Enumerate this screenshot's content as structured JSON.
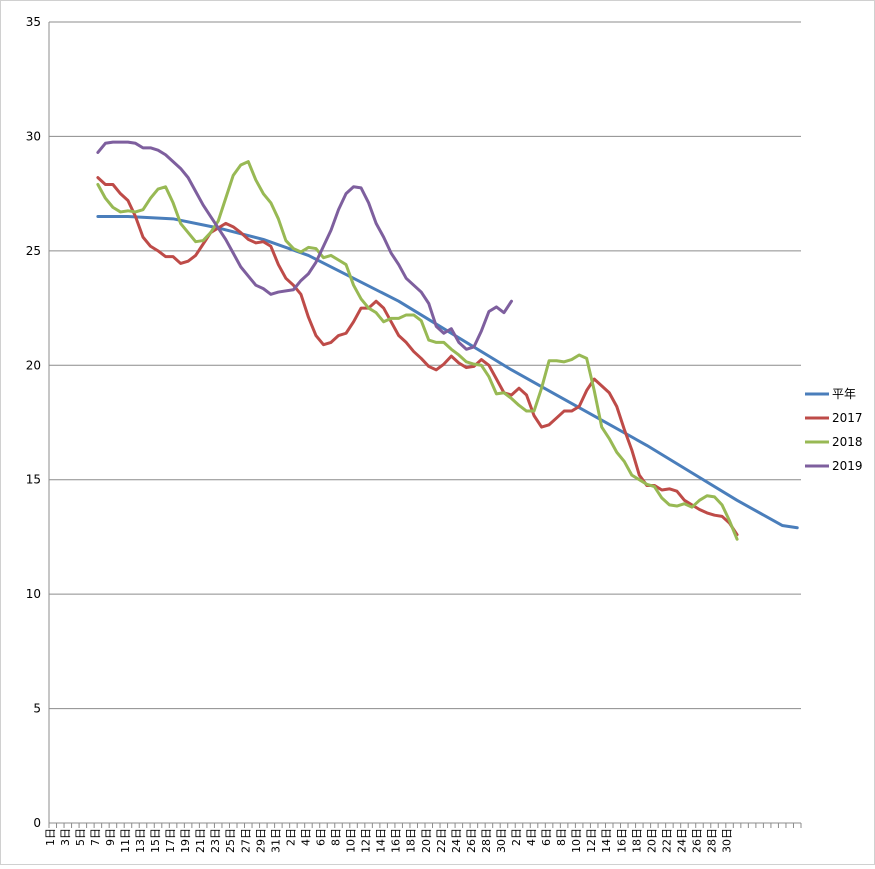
{
  "chart_data": {
    "type": "line",
    "title": "",
    "xlabel": "",
    "ylabel": "",
    "ylim": [
      0,
      35
    ],
    "yticks": [
      0,
      5,
      10,
      15,
      20,
      25,
      30,
      35
    ],
    "grid": "horizontal",
    "legend_position": "right",
    "x_tick_labels": [
      "1日",
      "3日",
      "5日",
      "7日",
      "9日",
      "11日",
      "13日",
      "15日",
      "17日",
      "19日",
      "21日",
      "23日",
      "25日",
      "27日",
      "29日",
      "31日",
      "2日",
      "4日",
      "6日",
      "8日",
      "10日",
      "12日",
      "14日",
      "16日",
      "18日",
      "20日",
      "22日",
      "24日",
      "26日",
      "28日",
      "30日",
      "2日",
      "4日",
      "6日",
      "8日",
      "10日",
      "12日",
      "14日",
      "16日",
      "18日",
      "20日",
      "22日",
      "24日",
      "26日",
      "28日",
      "30日"
    ],
    "series": [
      {
        "name": "平年",
        "color": "#4a7ebb",
        "points": [
          [
            7,
            26.5
          ],
          [
            11,
            26.5
          ],
          [
            17,
            26.4
          ],
          [
            23,
            26.0
          ],
          [
            29,
            25.5
          ],
          [
            35,
            24.8
          ],
          [
            41,
            23.8
          ],
          [
            47,
            22.8
          ],
          [
            53,
            21.6
          ],
          [
            59,
            20.4
          ],
          [
            62,
            19.8
          ],
          [
            68,
            18.7
          ],
          [
            74,
            17.6
          ],
          [
            80,
            16.5
          ],
          [
            86,
            15.3
          ],
          [
            92,
            14.1
          ],
          [
            98,
            13.0
          ],
          [
            100,
            12.9
          ]
        ]
      },
      {
        "name": "2017",
        "color": "#be4b48",
        "points": [
          [
            7,
            28.2
          ],
          [
            8,
            27.9
          ],
          [
            9,
            27.9
          ],
          [
            10,
            27.5
          ],
          [
            11,
            27.2
          ],
          [
            12,
            26.5
          ],
          [
            13,
            25.6
          ],
          [
            14,
            25.2
          ],
          [
            15,
            25.0
          ],
          [
            16,
            24.75
          ],
          [
            17,
            24.75
          ],
          [
            18,
            24.45
          ],
          [
            19,
            24.55
          ],
          [
            20,
            24.8
          ],
          [
            21,
            25.3
          ],
          [
            22,
            25.8
          ],
          [
            23,
            26.0
          ],
          [
            24,
            26.2
          ],
          [
            25,
            26.05
          ],
          [
            26,
            25.8
          ],
          [
            27,
            25.5
          ],
          [
            28,
            25.35
          ],
          [
            29,
            25.4
          ],
          [
            30,
            25.2
          ],
          [
            31,
            24.4
          ],
          [
            32,
            23.8
          ],
          [
            33,
            23.5
          ],
          [
            34,
            23.1
          ],
          [
            35,
            22.1
          ],
          [
            36,
            21.3
          ],
          [
            37,
            20.9
          ],
          [
            38,
            21.0
          ],
          [
            39,
            21.3
          ],
          [
            40,
            21.4
          ],
          [
            41,
            21.9
          ],
          [
            42,
            22.5
          ],
          [
            43,
            22.5
          ],
          [
            44,
            22.8
          ],
          [
            45,
            22.5
          ],
          [
            46,
            21.9
          ],
          [
            47,
            21.3
          ],
          [
            48,
            21.0
          ],
          [
            49,
            20.6
          ],
          [
            50,
            20.3
          ],
          [
            51,
            19.95
          ],
          [
            52,
            19.8
          ],
          [
            53,
            20.05
          ],
          [
            54,
            20.4
          ],
          [
            55,
            20.1
          ],
          [
            56,
            19.9
          ],
          [
            57,
            19.95
          ],
          [
            58,
            20.25
          ],
          [
            59,
            20.0
          ],
          [
            60,
            19.4
          ],
          [
            61,
            18.8
          ],
          [
            62,
            18.7
          ],
          [
            63,
            19.0
          ],
          [
            64,
            18.7
          ],
          [
            65,
            17.8
          ],
          [
            66,
            17.3
          ],
          [
            67,
            17.4
          ],
          [
            68,
            17.7
          ],
          [
            69,
            18.0
          ],
          [
            70,
            18.0
          ],
          [
            71,
            18.2
          ],
          [
            72,
            18.9
          ],
          [
            73,
            19.4
          ],
          [
            74,
            19.1
          ],
          [
            75,
            18.8
          ],
          [
            76,
            18.2
          ],
          [
            77,
            17.2
          ],
          [
            78,
            16.3
          ],
          [
            79,
            15.2
          ],
          [
            80,
            14.75
          ],
          [
            81,
            14.75
          ],
          [
            82,
            14.55
          ],
          [
            83,
            14.6
          ],
          [
            84,
            14.5
          ],
          [
            85,
            14.1
          ],
          [
            86,
            13.9
          ],
          [
            87,
            13.7
          ],
          [
            88,
            13.55
          ],
          [
            89,
            13.45
          ],
          [
            90,
            13.4
          ],
          [
            91,
            13.1
          ],
          [
            92,
            12.6
          ]
        ]
      },
      {
        "name": "2018",
        "color": "#98b954",
        "points": [
          [
            7,
            27.9
          ],
          [
            8,
            27.3
          ],
          [
            9,
            26.9
          ],
          [
            10,
            26.7
          ],
          [
            11,
            26.75
          ],
          [
            12,
            26.7
          ],
          [
            13,
            26.8
          ],
          [
            14,
            27.3
          ],
          [
            15,
            27.7
          ],
          [
            16,
            27.8
          ],
          [
            17,
            27.1
          ],
          [
            18,
            26.2
          ],
          [
            19,
            25.8
          ],
          [
            20,
            25.4
          ],
          [
            21,
            25.45
          ],
          [
            22,
            25.8
          ],
          [
            23,
            26.3
          ],
          [
            24,
            27.3
          ],
          [
            25,
            28.3
          ],
          [
            26,
            28.75
          ],
          [
            27,
            28.9
          ],
          [
            28,
            28.1
          ],
          [
            29,
            27.5
          ],
          [
            30,
            27.1
          ],
          [
            31,
            26.4
          ],
          [
            32,
            25.45
          ],
          [
            33,
            25.1
          ],
          [
            34,
            24.95
          ],
          [
            35,
            25.15
          ],
          [
            36,
            25.1
          ],
          [
            37,
            24.7
          ],
          [
            38,
            24.8
          ],
          [
            39,
            24.6
          ],
          [
            40,
            24.4
          ],
          [
            41,
            23.5
          ],
          [
            42,
            22.9
          ],
          [
            43,
            22.5
          ],
          [
            44,
            22.3
          ],
          [
            45,
            21.9
          ],
          [
            46,
            22.05
          ],
          [
            47,
            22.05
          ],
          [
            48,
            22.2
          ],
          [
            49,
            22.2
          ],
          [
            50,
            21.95
          ],
          [
            51,
            21.1
          ],
          [
            52,
            21.0
          ],
          [
            53,
            21.0
          ],
          [
            54,
            20.7
          ],
          [
            55,
            20.45
          ],
          [
            56,
            20.15
          ],
          [
            57,
            20.05
          ],
          [
            58,
            20.0
          ],
          [
            59,
            19.5
          ],
          [
            60,
            18.75
          ],
          [
            61,
            18.8
          ],
          [
            62,
            18.55
          ],
          [
            63,
            18.25
          ],
          [
            64,
            18.0
          ],
          [
            65,
            18.0
          ],
          [
            66,
            19.0
          ],
          [
            67,
            20.2
          ],
          [
            68,
            20.2
          ],
          [
            69,
            20.15
          ],
          [
            70,
            20.25
          ],
          [
            71,
            20.45
          ],
          [
            72,
            20.3
          ],
          [
            73,
            18.9
          ],
          [
            74,
            17.3
          ],
          [
            75,
            16.8
          ],
          [
            76,
            16.2
          ],
          [
            77,
            15.8
          ],
          [
            78,
            15.2
          ],
          [
            79,
            15.0
          ],
          [
            80,
            14.8
          ],
          [
            81,
            14.7
          ],
          [
            82,
            14.2
          ],
          [
            83,
            13.9
          ],
          [
            84,
            13.85
          ],
          [
            85,
            13.95
          ],
          [
            86,
            13.8
          ],
          [
            87,
            14.1
          ],
          [
            88,
            14.3
          ],
          [
            89,
            14.25
          ],
          [
            90,
            13.9
          ],
          [
            91,
            13.2
          ],
          [
            92,
            12.4
          ]
        ]
      },
      {
        "name": "2019",
        "color": "#7e5f9e",
        "points": [
          [
            7,
            29.3
          ],
          [
            8,
            29.7
          ],
          [
            9,
            29.75
          ],
          [
            10,
            29.75
          ],
          [
            11,
            29.75
          ],
          [
            12,
            29.7
          ],
          [
            13,
            29.5
          ],
          [
            14,
            29.5
          ],
          [
            15,
            29.4
          ],
          [
            16,
            29.2
          ],
          [
            17,
            28.9
          ],
          [
            18,
            28.6
          ],
          [
            19,
            28.2
          ],
          [
            20,
            27.6
          ],
          [
            21,
            27.0
          ],
          [
            22,
            26.5
          ],
          [
            23,
            26.0
          ],
          [
            24,
            25.5
          ],
          [
            25,
            24.9
          ],
          [
            26,
            24.3
          ],
          [
            27,
            23.9
          ],
          [
            28,
            23.5
          ],
          [
            29,
            23.35
          ],
          [
            30,
            23.1
          ],
          [
            31,
            23.2
          ],
          [
            32,
            23.25
          ],
          [
            33,
            23.3
          ],
          [
            34,
            23.7
          ],
          [
            35,
            24.0
          ],
          [
            36,
            24.5
          ],
          [
            37,
            25.2
          ],
          [
            38,
            25.9
          ],
          [
            39,
            26.8
          ],
          [
            40,
            27.5
          ],
          [
            41,
            27.8
          ],
          [
            42,
            27.75
          ],
          [
            43,
            27.1
          ],
          [
            44,
            26.2
          ],
          [
            45,
            25.6
          ],
          [
            46,
            24.9
          ],
          [
            47,
            24.4
          ],
          [
            48,
            23.8
          ],
          [
            49,
            23.5
          ],
          [
            50,
            23.2
          ],
          [
            51,
            22.7
          ],
          [
            52,
            21.7
          ],
          [
            53,
            21.4
          ],
          [
            54,
            21.6
          ],
          [
            55,
            21.0
          ],
          [
            56,
            20.7
          ],
          [
            57,
            20.8
          ],
          [
            58,
            21.5
          ],
          [
            59,
            22.35
          ],
          [
            60,
            22.55
          ],
          [
            61,
            22.3
          ],
          [
            62,
            22.8
          ]
        ]
      }
    ]
  }
}
